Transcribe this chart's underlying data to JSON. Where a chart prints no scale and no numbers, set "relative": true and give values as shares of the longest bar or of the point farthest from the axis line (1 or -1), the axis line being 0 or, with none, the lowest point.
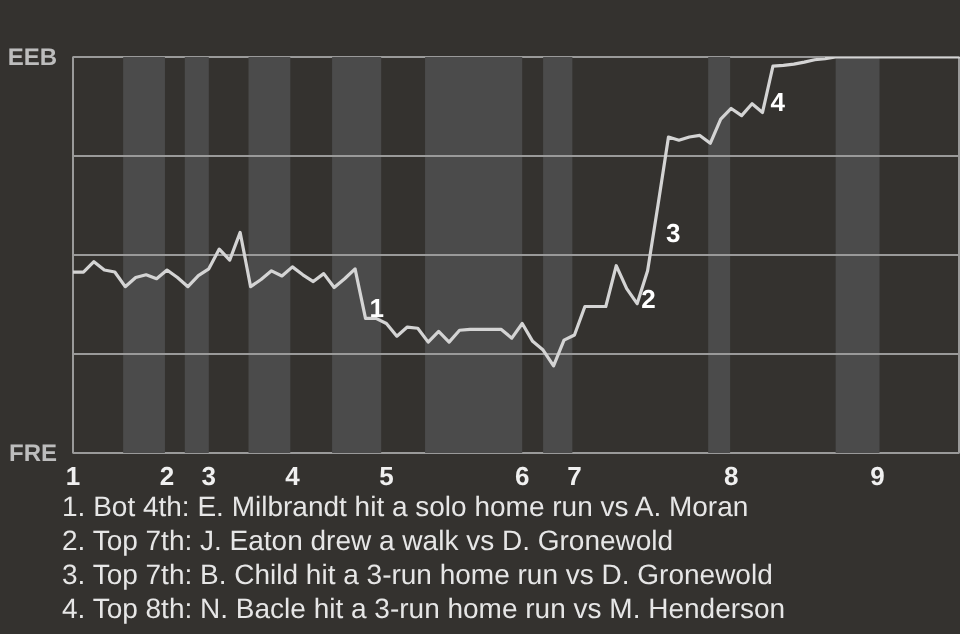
{
  "chart_data": {
    "type": "line",
    "relative": true,
    "categories": [
      "1",
      null,
      null,
      null,
      null,
      null,
      null,
      null,
      null,
      "2",
      null,
      null,
      null,
      "3",
      null,
      null,
      null,
      null,
      null,
      null,
      null,
      "4",
      null,
      null,
      null,
      null,
      null,
      null,
      null,
      null,
      "5",
      null,
      null,
      null,
      null,
      null,
      null,
      null,
      null,
      null,
      null,
      null,
      null,
      "6",
      null,
      null,
      null,
      null,
      "7",
      null,
      null,
      null,
      null,
      null,
      null,
      null,
      null,
      null,
      null,
      null,
      null,
      null,
      null,
      "8",
      null,
      null,
      null,
      null,
      null,
      null,
      null,
      null,
      null,
      null,
      null,
      null,
      null,
      "9",
      null,
      null,
      null,
      null,
      null,
      null,
      null,
      null
    ],
    "series": [
      {
        "color": "#d4d4d4",
        "values": [
          0.457,
          0.457,
          0.483,
          0.462,
          0.457,
          0.42,
          0.443,
          0.45,
          0.44,
          0.462,
          0.443,
          0.42,
          0.448,
          0.465,
          0.515,
          0.487,
          0.557,
          0.42,
          0.438,
          0.46,
          0.447,
          0.47,
          0.45,
          0.433,
          0.453,
          0.418,
          0.44,
          0.465,
          0.34,
          0.34,
          0.327,
          0.295,
          0.318,
          0.315,
          0.28,
          0.307,
          0.28,
          0.31,
          0.312,
          0.312,
          0.312,
          0.312,
          0.29,
          0.327,
          0.282,
          0.26,
          0.22,
          0.285,
          0.298,
          0.37,
          0.37,
          0.37,
          0.473,
          0.415,
          0.377,
          0.46,
          0.627,
          0.798,
          0.79,
          0.798,
          0.802,
          0.782,
          0.843,
          0.87,
          0.852,
          0.882,
          0.86,
          0.977,
          0.979,
          0.982,
          0.987,
          0.993,
          0.996,
          1.0,
          1.0,
          1.0,
          1.0,
          1.0,
          1.0,
          1.0,
          1.0,
          1.0,
          1.0,
          1.0,
          1.0,
          1.0
        ],
        "name": null
      }
    ],
    "ref_lines": [
      {
        "axis": "y",
        "value": 0.25,
        "color": "#9a9a9a"
      },
      {
        "axis": "y",
        "value": 0.5,
        "color": "#9a9a9a"
      },
      {
        "axis": "y",
        "value": 0.75,
        "color": "#9a9a9a"
      }
    ],
    "annotations": [
      "EEB",
      "FRE",
      "1",
      "2",
      "3",
      "4",
      "1. Bot 4th: E. Milbrandt hit a solo home run vs A. Moran",
      "2. Top 7th: J. Eaton drew a walk vs D. Gronewold",
      "3. Top 7th: B. Child hit a 3-run home run vs D. Gronewold",
      "4. Top 8th: N. Bacle hit a 3-run home run vs M. Henderson"
    ]
  }
}
